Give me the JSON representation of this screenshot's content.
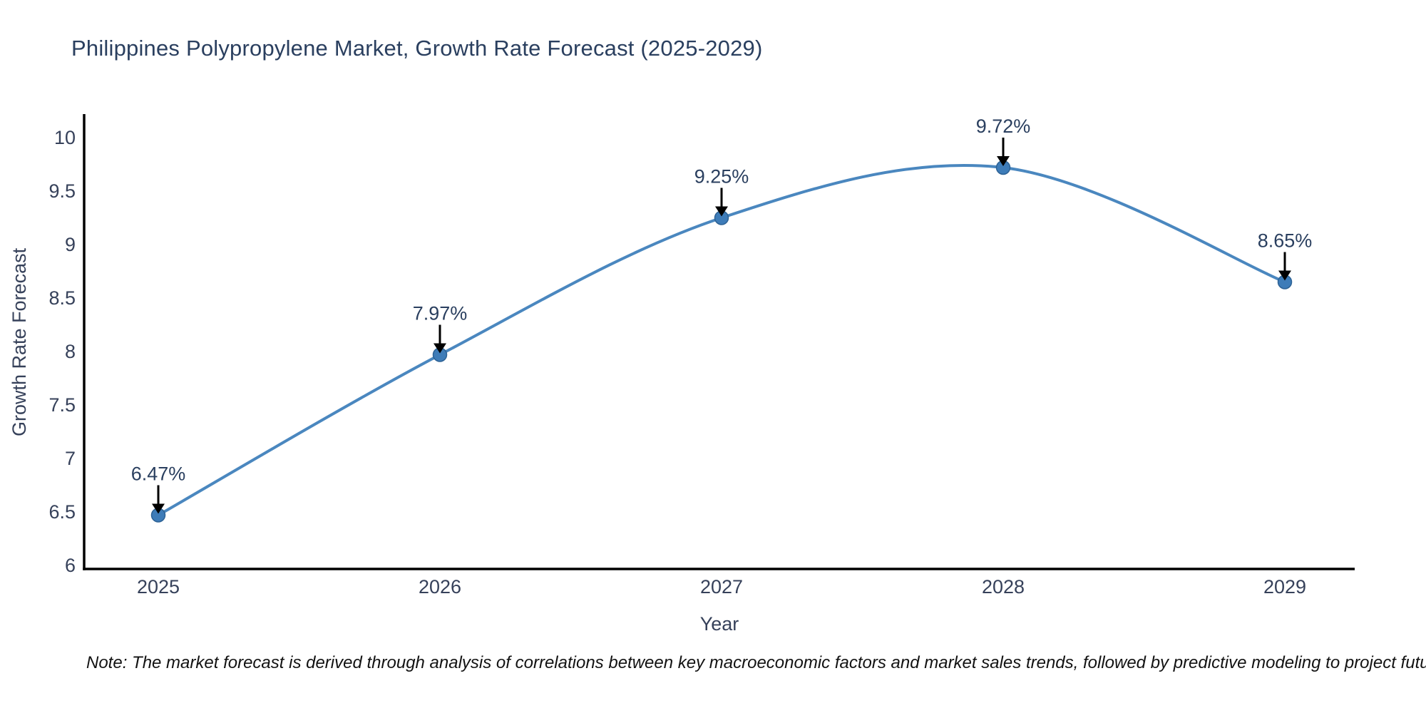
{
  "chart_data": {
    "type": "line",
    "title": "Philippines Polypropylene Market, Growth Rate Forecast (2025-2029)",
    "x": [
      2025,
      2026,
      2027,
      2028,
      2029
    ],
    "series": [
      {
        "name": "Growth Rate Forecast",
        "values": [
          6.47,
          7.97,
          9.25,
          9.72,
          8.65
        ]
      }
    ],
    "point_labels": [
      "6.47%",
      "7.97%",
      "9.25%",
      "9.72%",
      "8.65%"
    ],
    "xlabel": "Year",
    "ylabel": "Growth Rate Forecast",
    "xticks": [
      "2025",
      "2026",
      "2027",
      "2028",
      "2029"
    ],
    "yticks": [
      6,
      6.5,
      7,
      7.5,
      8,
      8.5,
      9,
      9.5,
      10
    ],
    "ylim": [
      6,
      10.2
    ],
    "grid": false,
    "legend": "none",
    "line_shape": "spline",
    "line_color": "#4a87bf",
    "marker_color": "#3e7cb8",
    "marker_edge_color": "#2d6295",
    "axis_color": "#000000",
    "annotation_arrow_color": "#000000",
    "note": "Note: The market forecast is derived through analysis of correlations between key macroeconomic factors and market sales trends, followed by predictive modeling to project future sales"
  }
}
